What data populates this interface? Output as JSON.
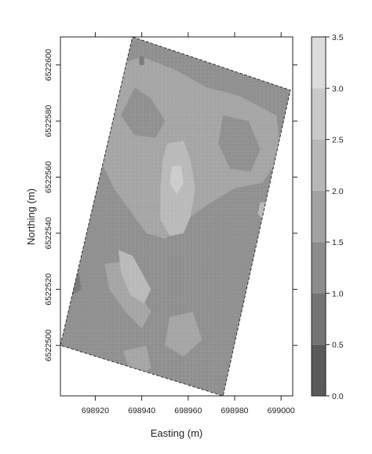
{
  "chart_data": {
    "type": "heatmap",
    "title": "",
    "xlabel": "Easting (m)",
    "ylabel": "Northing (m)",
    "xlim": [
      698905,
      699005
    ],
    "ylim": [
      6522482,
      6522610
    ],
    "x_ticks": [
      698920,
      698940,
      698960,
      698980,
      699000
    ],
    "y_ticks": [
      6522500,
      6522520,
      6522540,
      6522560,
      6522580,
      6522600
    ],
    "x_tick_labels": [
      "698920",
      "698940",
      "698960",
      "698980",
      "699000"
    ],
    "y_tick_labels": [
      "6522500",
      "6522520",
      "6522540",
      "6522560",
      "6522580",
      "6522600"
    ],
    "field_polygon": [
      [
        698936,
        6522610
      ],
      [
        699004,
        6522591
      ],
      [
        698975,
        6522482
      ],
      [
        698905,
        6522500
      ]
    ],
    "colorbar": {
      "levels": [
        0.0,
        0.5,
        1.0,
        1.5,
        2.0,
        2.5,
        3.0,
        3.5
      ],
      "level_labels": [
        "0.0",
        "0.5",
        "1.0",
        "1.5",
        "2.0",
        "2.5",
        "3.0",
        "3.5"
      ],
      "colors": [
        "#5a5a5a",
        "#747474",
        "#8c8c8c",
        "#a2a2a2",
        "#b7b7b7",
        "#cacaca",
        "#dcdcdc"
      ]
    },
    "base_value": 1.25,
    "zones": [
      {
        "value": 1.75,
        "polygon": [
          [
            698940,
            6522603
          ],
          [
            698955,
            6522598
          ],
          [
            698968,
            6522592
          ],
          [
            698982,
            6522589
          ],
          [
            698998,
            6522582
          ],
          [
            699000,
            6522568
          ],
          [
            698992,
            6522558
          ],
          [
            698980,
            6522556
          ],
          [
            698968,
            6522550
          ],
          [
            698958,
            6522544
          ],
          [
            698950,
            6522538
          ],
          [
            698942,
            6522540
          ],
          [
            698935,
            6522548
          ],
          [
            698928,
            6522556
          ],
          [
            698920,
            6522570
          ],
          [
            698913,
            6522582
          ],
          [
            698918,
            6522590
          ],
          [
            698930,
            6522600
          ]
        ]
      },
      {
        "value": 1.25,
        "polygon": [
          [
            698937,
            6522592
          ],
          [
            698944,
            6522588
          ],
          [
            698950,
            6522580
          ],
          [
            698946,
            6522574
          ],
          [
            698937,
            6522575
          ],
          [
            698931,
            6522582
          ]
        ]
      },
      {
        "value": 1.25,
        "polygon": [
          [
            698975,
            6522582
          ],
          [
            698986,
            6522580
          ],
          [
            698991,
            6522570
          ],
          [
            698987,
            6522562
          ],
          [
            698978,
            6522563
          ],
          [
            698973,
            6522572
          ]
        ]
      },
      {
        "value": 1.25,
        "polygon": [
          [
            698912,
            6522556
          ],
          [
            698922,
            6522558
          ],
          [
            698928,
            6522548
          ],
          [
            698926,
            6522540
          ],
          [
            698918,
            6522536
          ],
          [
            698911,
            6522542
          ]
        ]
      },
      {
        "value": 1.75,
        "polygon": [
          [
            698924,
            6522529
          ],
          [
            698932,
            6522530
          ],
          [
            698938,
            6522520
          ],
          [
            698944,
            6522512
          ],
          [
            698940,
            6522506
          ],
          [
            698933,
            6522512
          ],
          [
            698926,
            6522520
          ]
        ]
      },
      {
        "value": 1.75,
        "polygon": [
          [
            698932,
            6522498
          ],
          [
            698942,
            6522500
          ],
          [
            698944,
            6522492
          ],
          [
            698936,
            6522488
          ]
        ]
      },
      {
        "value": 1.75,
        "polygon": [
          [
            698952,
            6522510
          ],
          [
            698962,
            6522512
          ],
          [
            698966,
            6522502
          ],
          [
            698958,
            6522496
          ],
          [
            698950,
            6522500
          ]
        ]
      },
      {
        "value": 2.25,
        "polygon": [
          [
            698951,
            6522572
          ],
          [
            698958,
            6522573
          ],
          [
            698961,
            6522566
          ],
          [
            698963,
            6522556
          ],
          [
            698961,
            6522546
          ],
          [
            698958,
            6522540
          ],
          [
            698952,
            6522539
          ],
          [
            698948,
            6522545
          ],
          [
            698948,
            6522556
          ],
          [
            698949,
            6522566
          ]
        ]
      },
      {
        "value": 2.25,
        "polygon": [
          [
            698930,
            6522534
          ],
          [
            698936,
            6522532
          ],
          [
            698940,
            6522526
          ],
          [
            698944,
            6522520
          ],
          [
            698941,
            6522515
          ],
          [
            698935,
            6522518
          ],
          [
            698931,
            6522526
          ]
        ]
      },
      {
        "value": 2.25,
        "polygon": [
          [
            698991,
            6522551
          ],
          [
            698995,
            6522551
          ],
          [
            698996,
            6522546
          ],
          [
            698993,
            6522544
          ],
          [
            698990,
            6522547
          ]
        ]
      },
      {
        "value": 2.75,
        "polygon": [
          [
            698953,
            6522564
          ],
          [
            698957,
            6522564
          ],
          [
            698958,
            6522558
          ],
          [
            698955,
            6522554
          ],
          [
            698952,
            6522558
          ]
        ]
      },
      {
        "value": 0.75,
        "polygon": [
          [
            698909,
            6522525
          ],
          [
            698913,
            6522526
          ],
          [
            698914,
            6522520
          ],
          [
            698910,
            6522518
          ],
          [
            698908,
            6522521
          ]
        ]
      },
      {
        "value": 0.75,
        "polygon": [
          [
            698939,
            6522603
          ],
          [
            698941,
            6522603
          ],
          [
            698941,
            6522600
          ],
          [
            698939,
            6522600
          ]
        ]
      }
    ],
    "grid": false,
    "legend_placement": "right"
  }
}
